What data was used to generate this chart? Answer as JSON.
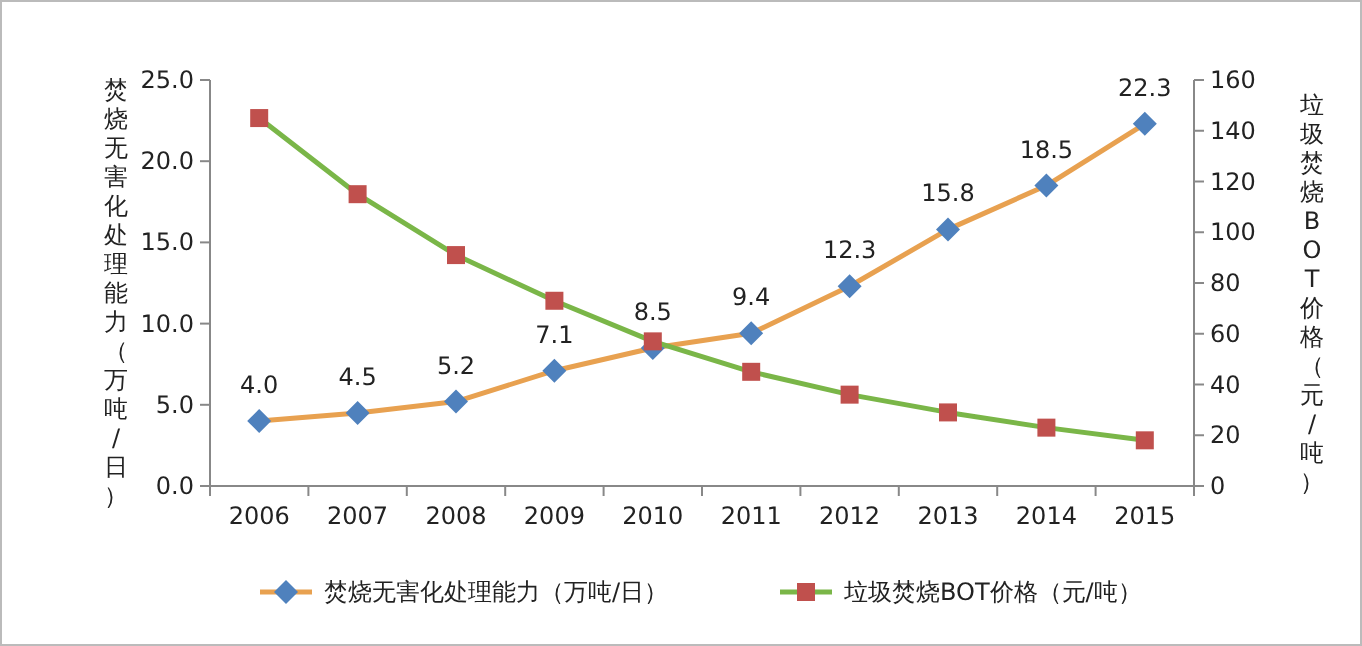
{
  "chart_data": {
    "type": "line",
    "categories": [
      "2006",
      "2007",
      "2008",
      "2009",
      "2010",
      "2011",
      "2012",
      "2013",
      "2014",
      "2015"
    ],
    "ylabel": "焚烧无害化处理能力（万吨/日）",
    "y2label": "垃圾焚烧BOT价格（元/吨）",
    "ylim": [
      0,
      25
    ],
    "yticks": [
      {
        "value": 0,
        "label": "0.0"
      },
      {
        "value": 5,
        "label": "5.0"
      },
      {
        "value": 10,
        "label": "10.0"
      },
      {
        "value": 15,
        "label": "15.0"
      },
      {
        "value": 20,
        "label": "20.0"
      },
      {
        "value": 25,
        "label": "25.0"
      }
    ],
    "y2lim": [
      0,
      160
    ],
    "y2ticks": [
      0,
      20,
      40,
      60,
      80,
      100,
      120,
      140,
      160
    ],
    "series": [
      {
        "name": "焚烧无害化处理能力（万吨/日）",
        "color": "#e8a150",
        "colors": [
          "#4f81bd",
          "#4f81bd",
          "#4f81bd",
          "#4f81bd",
          "#4f81bd",
          "#4f81bd",
          "#4f81bd",
          "#4f81bd",
          "#4f81bd",
          "#4f81bd"
        ],
        "marker": "diamond",
        "values": [
          4.0,
          4.5,
          5.2,
          7.1,
          8.5,
          9.4,
          12.3,
          15.8,
          18.5,
          22.3
        ],
        "value_labels": [
          "4.0",
          "4.5",
          "5.2",
          "7.1",
          "8.5",
          "9.4",
          "12.3",
          "15.8",
          "18.5",
          "22.3"
        ]
      },
      {
        "name": "垃圾焚烧BOT价格（元/吨）",
        "color": "#7ab648",
        "colors": [
          "#c0504d",
          "#c0504d",
          "#c0504d",
          "#c0504d",
          "#c0504d",
          "#c0504d",
          "#c0504d",
          "#c0504d",
          "#c0504d",
          "#c0504d"
        ],
        "marker": "square",
        "axis": "y2",
        "values": [
          145,
          115,
          91,
          73,
          57,
          45,
          36,
          29,
          23,
          18
        ]
      }
    ],
    "grid": false,
    "legend": "bottom"
  }
}
